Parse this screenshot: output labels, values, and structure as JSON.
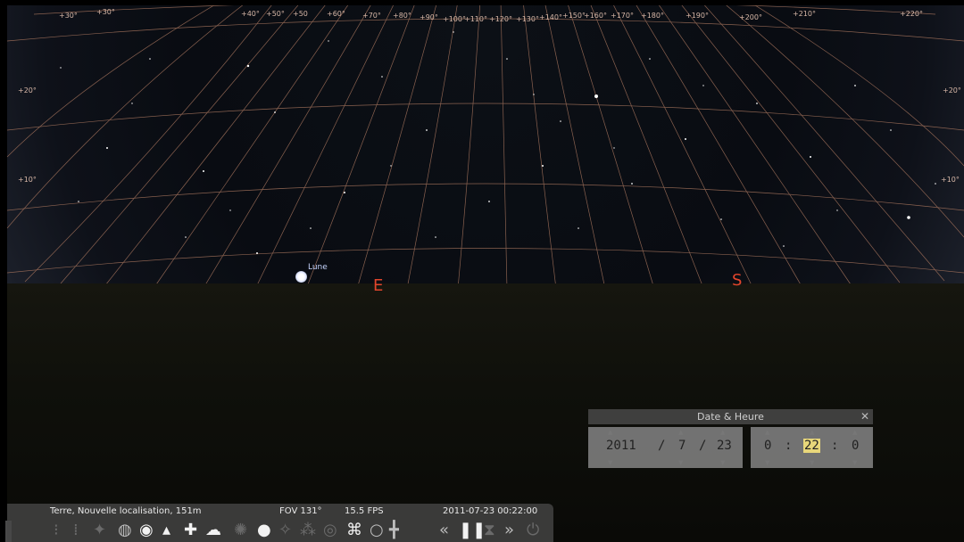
{
  "moon_label": "Lune",
  "cardinals": {
    "east": "E",
    "south": "S"
  },
  "grid_labels": [
    "+30°",
    "+20°",
    "+30°",
    "+40°",
    "+50°",
    "+50",
    "+60°",
    "+70°",
    "+80°",
    "+90°",
    "+100°",
    "+110°",
    "+120°",
    "+130°",
    "+140°",
    "+150°",
    "+160°",
    "+170°",
    "+180°",
    "+190°",
    "+200°",
    "+210°",
    "+220°",
    "+20°",
    "+10°",
    "+20°",
    "+10°"
  ],
  "date_panel": {
    "title": "Date & Heure",
    "close": "✕",
    "year": "2011",
    "sep1": "/",
    "month": "7",
    "sep2": "/",
    "day": "23",
    "hour": "0",
    "tsep1": ":",
    "minute": "22",
    "tsep2": ":",
    "second": "0"
  },
  "status": {
    "location": "Terre, Nouvelle localisation, 151m",
    "fov": "FOV 131°",
    "fps": "15.5 FPS",
    "datetime": "2011-07-23   00:22:00"
  },
  "icons": {
    "constellation_lines": "constellation-lines-icon",
    "constellation_labels": "constellation-labels-icon",
    "constellation_art": "constellation-art-icon",
    "equatorial_grid": "equatorial-grid-icon",
    "azimuthal_grid": "azimuthal-grid-icon",
    "ground": "ground-icon",
    "cardinal_points": "cardinal-points-icon",
    "atmosphere": "atmosphere-icon",
    "nebulae": "nebulae-icon",
    "planet_hints": "planet-hints-icon",
    "satellites": "satellites-icon",
    "eyepiece": "eyepiece-icon",
    "fullscreen": "fullscreen-icon",
    "sphere": "sphere-icon",
    "telescope": "telescope-icon",
    "rewind": "rewind-icon",
    "pause": "pause-icon",
    "realtime": "realtime-icon",
    "fast_forward": "fast-forward-icon",
    "quit": "quit-icon"
  }
}
